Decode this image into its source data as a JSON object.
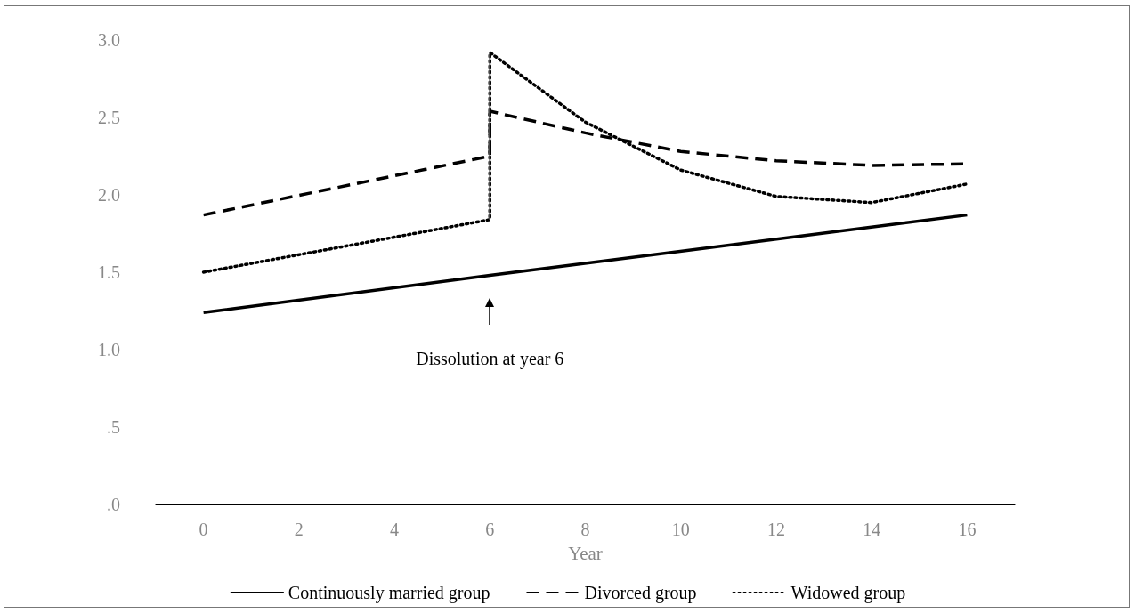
{
  "chart_data": {
    "type": "line",
    "xlabel": "Year",
    "xlim": [
      -1,
      17
    ],
    "xticks": [
      0,
      2,
      4,
      6,
      8,
      10,
      12,
      14,
      16
    ],
    "ylim": [
      0,
      3
    ],
    "yticks": [
      {
        "value": 0,
        "label": ".0"
      },
      {
        "value": 0.5,
        "label": ".5"
      },
      {
        "value": 1,
        "label": "1.0"
      },
      {
        "value": 1.5,
        "label": "1.5"
      },
      {
        "value": 2,
        "label": "2.0"
      },
      {
        "value": 2.5,
        "label": "2.5"
      },
      {
        "value": 3,
        "label": "3.0"
      }
    ],
    "grid": false,
    "legend": "bottom",
    "marker": "none",
    "tick_labels": "xy",
    "series": [
      {
        "name": "Continuously married group",
        "color": "#000000",
        "line_style": "solid",
        "x": [
          0,
          6,
          16
        ],
        "values": [
          1.24,
          1.48,
          1.87
        ]
      },
      {
        "name": "Divorced group",
        "color": "#000000",
        "line_style": "dashed",
        "x": [
          0,
          6,
          6,
          8,
          10,
          12,
          14,
          16
        ],
        "values": [
          1.87,
          2.25,
          2.54,
          2.4,
          2.28,
          2.22,
          2.19,
          2.2
        ]
      },
      {
        "name": "Widowed group",
        "color": "#000000",
        "line_style": "dotted",
        "x": [
          0,
          6,
          6,
          8,
          10,
          12,
          14,
          16
        ],
        "values": [
          1.5,
          1.84,
          2.92,
          2.47,
          2.16,
          1.99,
          1.95,
          2.07
        ]
      },
      {
        "color": "#999999",
        "line_style": "solid",
        "x": [
          6,
          6
        ],
        "values": [
          1.84,
          2.92
        ]
      }
    ],
    "annotations": [
      "Dissolution at year 6"
    ]
  }
}
